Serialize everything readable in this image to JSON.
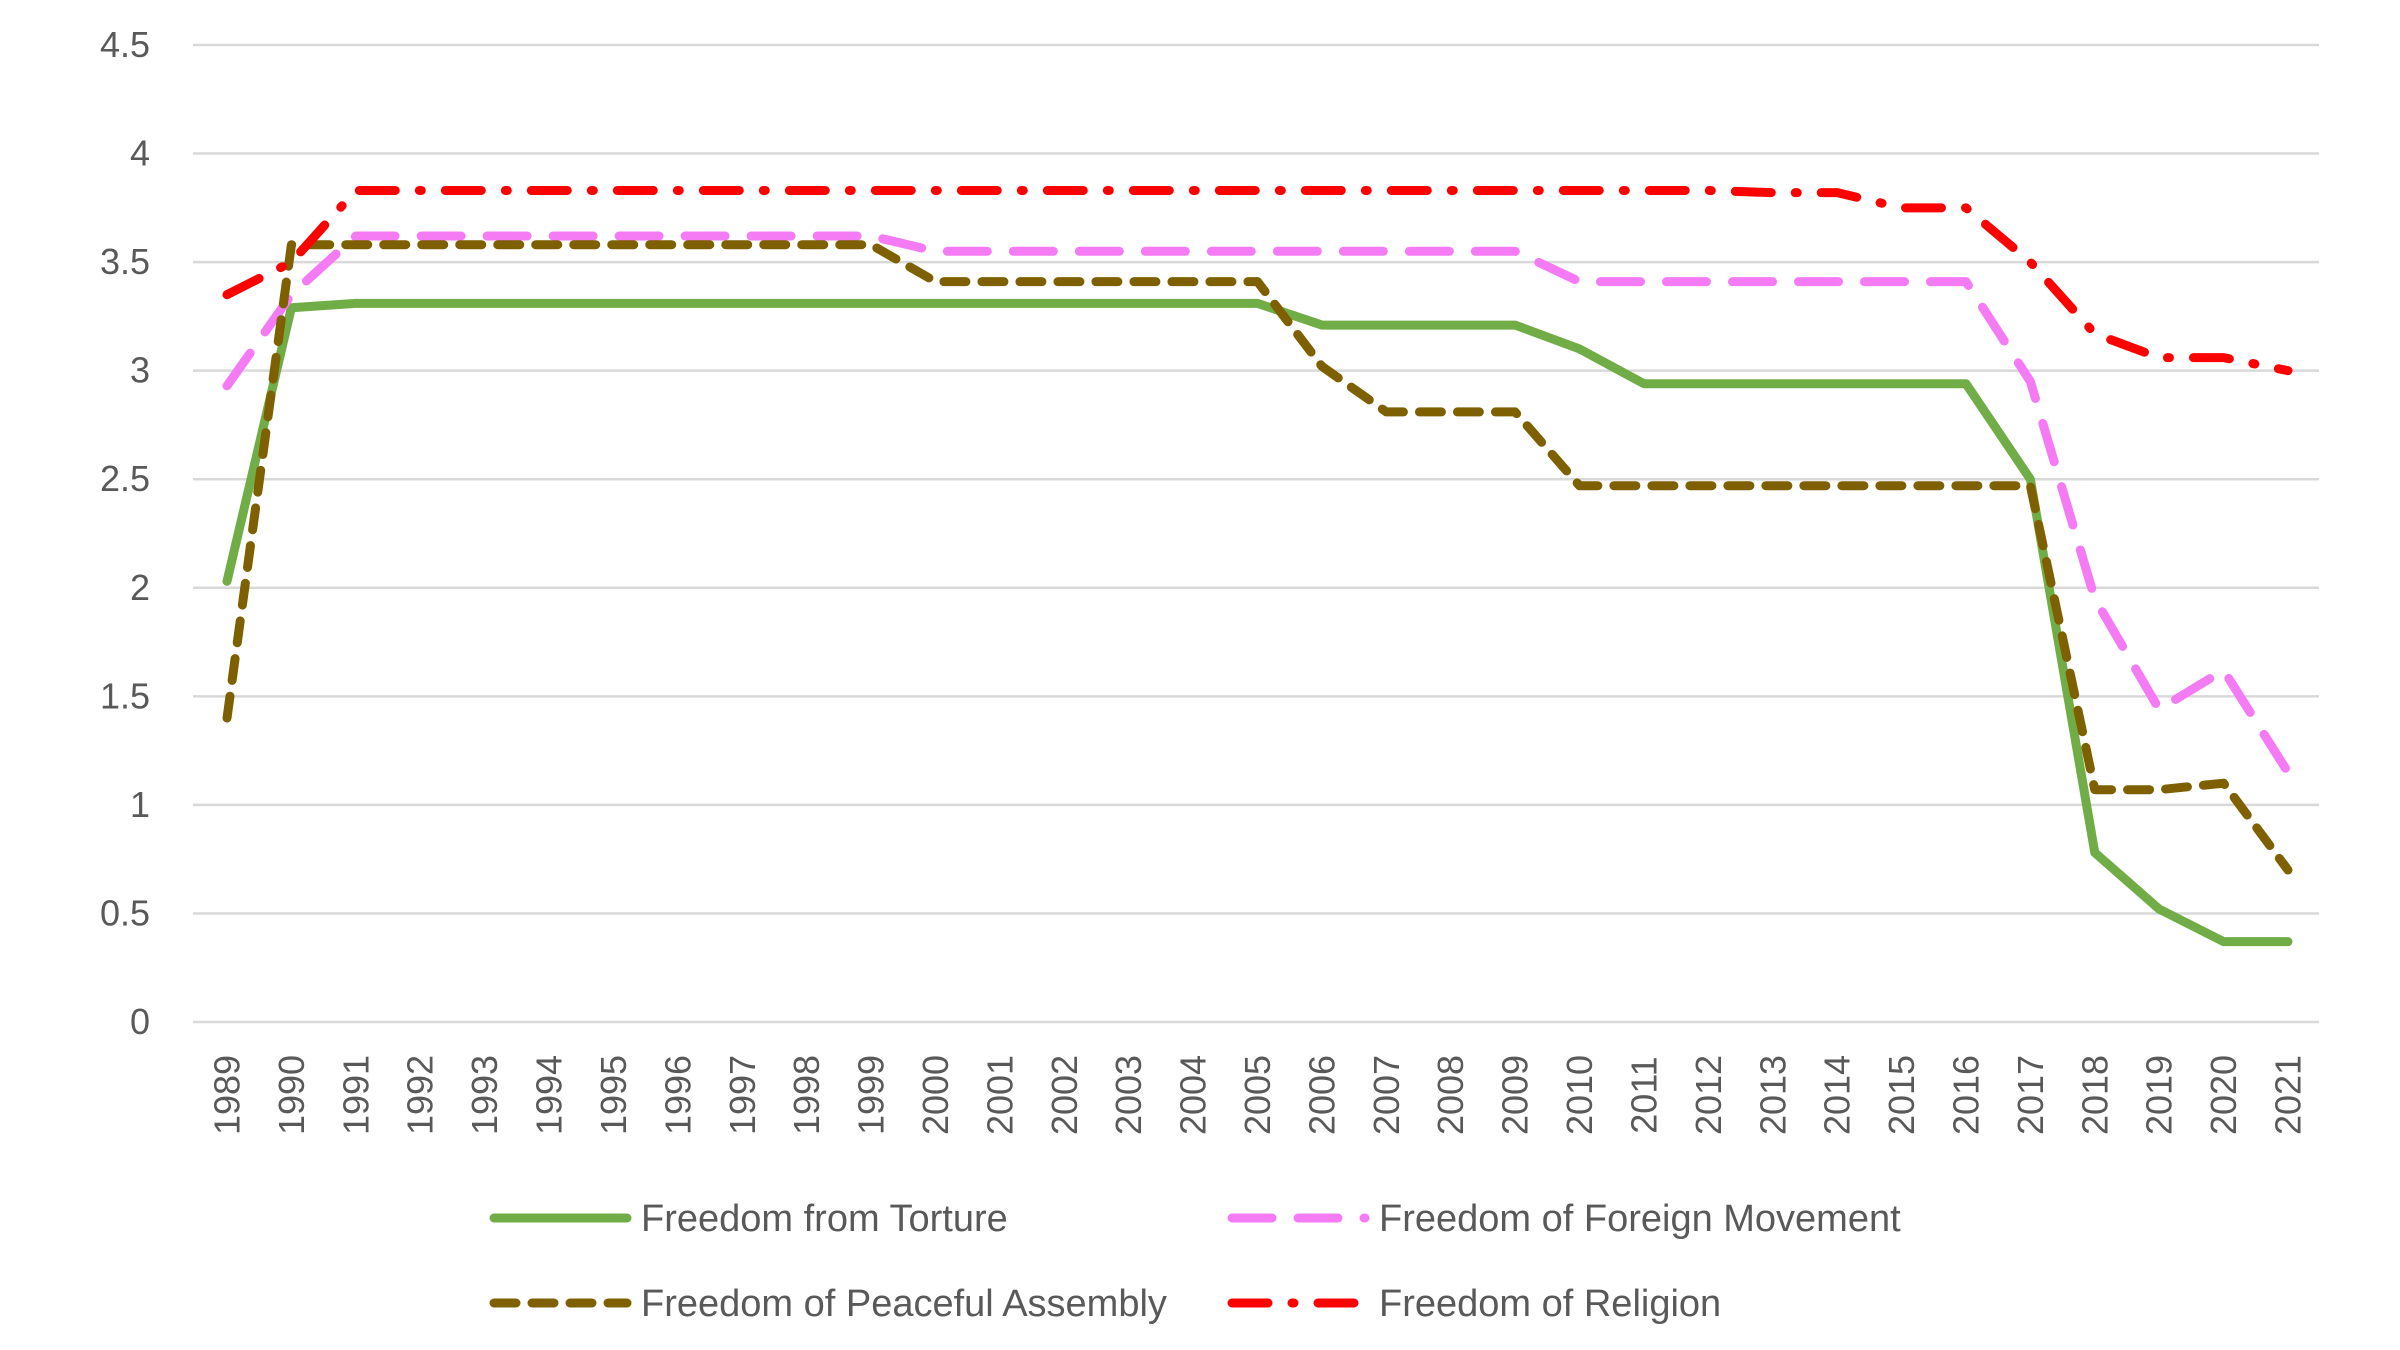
{
  "chart_data": {
    "type": "line",
    "title": "",
    "xlabel": "",
    "ylabel": "",
    "ylim": [
      0,
      4.5
    ],
    "yticks": [
      "0",
      "0.5",
      "1",
      "1.5",
      "2",
      "2.5",
      "3",
      "3.5",
      "4",
      "4.5"
    ],
    "grid": true,
    "legend_position": "bottom",
    "categories": [
      "1989",
      "1990",
      "1991",
      "1992",
      "1993",
      "1994",
      "1995",
      "1996",
      "1997",
      "1998",
      "1999",
      "2000",
      "2001",
      "2002",
      "2003",
      "2004",
      "2005",
      "2006",
      "2007",
      "2008",
      "2009",
      "2010",
      "2011",
      "2012",
      "2013",
      "2014",
      "2015",
      "2016",
      "2017",
      "2018",
      "2019",
      "2020",
      "2021"
    ],
    "series": [
      {
        "name": "Freedom from Torture",
        "color": "#70AD47",
        "style": "solid",
        "values": [
          2.03,
          3.29,
          3.31,
          3.31,
          3.31,
          3.31,
          3.31,
          3.31,
          3.31,
          3.31,
          3.31,
          3.31,
          3.31,
          3.31,
          3.31,
          3.31,
          3.31,
          3.21,
          3.21,
          3.21,
          3.21,
          3.1,
          2.94,
          2.94,
          2.94,
          2.94,
          2.94,
          2.94,
          2.5,
          0.78,
          0.52,
          0.37,
          0.37
        ]
      },
      {
        "name": "Freedom of Foreign Movement",
        "color": "#F57BF5",
        "style": "long-dash",
        "values": [
          2.93,
          3.35,
          3.62,
          3.62,
          3.62,
          3.62,
          3.62,
          3.62,
          3.62,
          3.62,
          3.62,
          3.55,
          3.55,
          3.55,
          3.55,
          3.55,
          3.55,
          3.55,
          3.55,
          3.55,
          3.55,
          3.41,
          3.41,
          3.41,
          3.41,
          3.41,
          3.41,
          3.41,
          2.95,
          1.95,
          1.44,
          1.62,
          1.15
        ]
      },
      {
        "name": "Freedom of Peaceful Assembly",
        "color": "#7F6000",
        "style": "dash",
        "values": [
          1.4,
          3.58,
          3.58,
          3.58,
          3.58,
          3.58,
          3.58,
          3.58,
          3.58,
          3.58,
          3.58,
          3.41,
          3.41,
          3.41,
          3.41,
          3.41,
          3.41,
          3.02,
          2.81,
          2.81,
          2.81,
          2.47,
          2.47,
          2.47,
          2.47,
          2.47,
          2.47,
          2.47,
          2.47,
          1.07,
          1.07,
          1.1,
          0.7
        ]
      },
      {
        "name": "Freedom of Religion",
        "color": "#FF0000",
        "style": "dash-dot",
        "values": [
          3.35,
          3.5,
          3.83,
          3.83,
          3.83,
          3.83,
          3.83,
          3.83,
          3.83,
          3.83,
          3.83,
          3.83,
          3.83,
          3.83,
          3.83,
          3.83,
          3.83,
          3.83,
          3.83,
          3.83,
          3.83,
          3.83,
          3.83,
          3.83,
          3.82,
          3.82,
          3.75,
          3.75,
          3.5,
          3.17,
          3.06,
          3.06,
          3.0
        ]
      }
    ]
  }
}
